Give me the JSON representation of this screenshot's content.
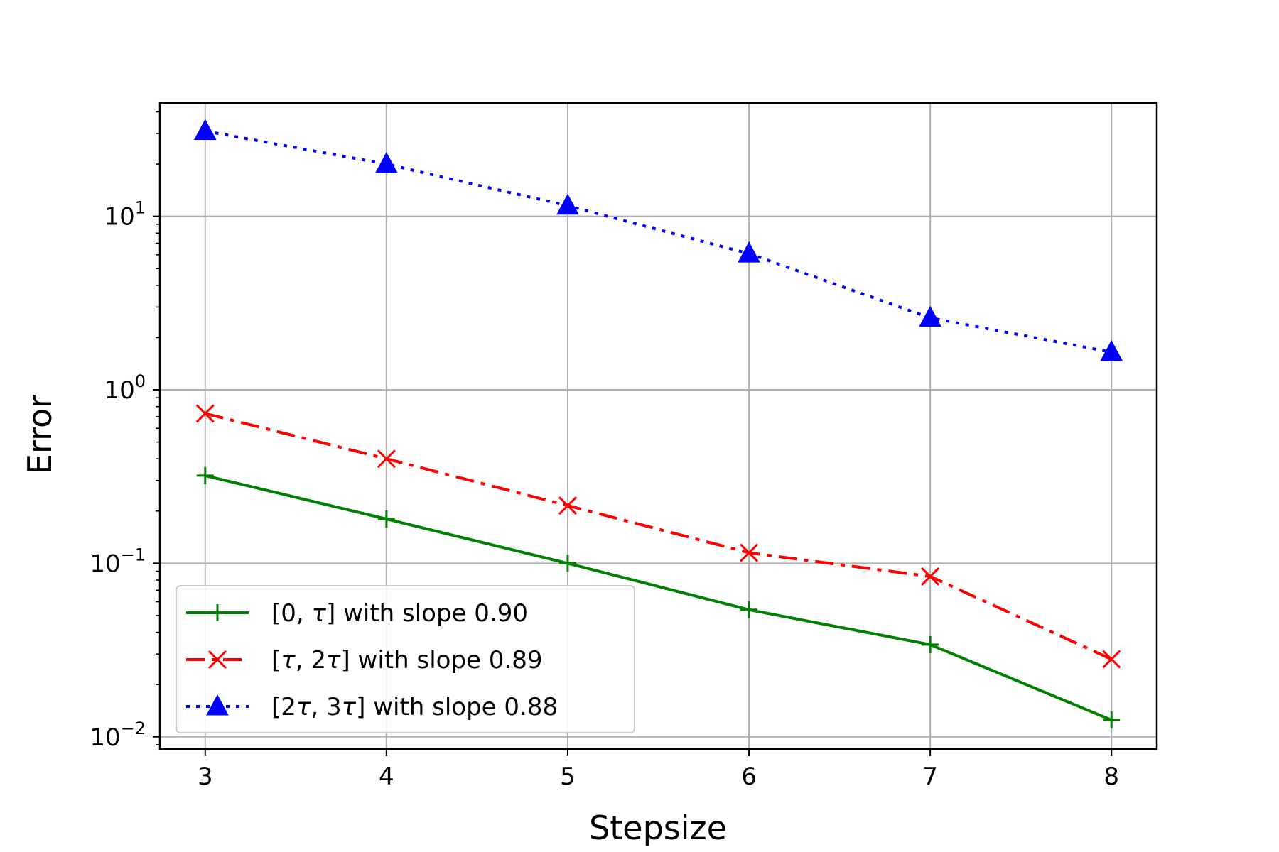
{
  "chart_data": {
    "type": "line",
    "xlabel": "Stepsize",
    "ylabel": "Error",
    "yscale": "log",
    "grid": true,
    "legend_position": "lower-left",
    "x": [
      3,
      4,
      5,
      6,
      7,
      8
    ],
    "xlim": [
      2.75,
      8.25
    ],
    "ylim": [
      0.0085,
      45
    ],
    "x_ticks": [
      "3",
      "4",
      "5",
      "6",
      "7",
      "8"
    ],
    "y_ticks": [
      {
        "value": 0.01,
        "base": "10",
        "exp": "−2"
      },
      {
        "value": 0.1,
        "base": "10",
        "exp": "−1"
      },
      {
        "value": 1,
        "base": "10",
        "exp": "0"
      },
      {
        "value": 10,
        "base": "10",
        "exp": "1"
      }
    ],
    "series": [
      {
        "name": "[0, τ] with slope 0.90",
        "legend_parts": {
          "pre": "[0, ",
          "tau1": "τ",
          "mid": "",
          "tau2": "",
          "post": "] with slope 0.90"
        },
        "values": [
          0.32,
          0.18,
          0.1,
          0.054,
          0.034,
          0.0125
        ],
        "color": "#008000",
        "line_style": "solid",
        "marker": "plus"
      },
      {
        "name": "[τ, 2τ] with slope 0.89",
        "legend_parts": {
          "pre": "[",
          "tau1": "τ",
          "mid": ", 2",
          "tau2": "τ",
          "post": "] with slope 0.89"
        },
        "values": [
          0.73,
          0.4,
          0.215,
          0.115,
          0.084,
          0.028
        ],
        "color": "#ff0000",
        "line_style": "dashdot",
        "marker": "x"
      },
      {
        "name": "[2τ, 3τ] with slope 0.88",
        "legend_parts": {
          "pre": "[2",
          "tau1": "τ",
          "mid": ", 3",
          "tau2": "τ",
          "post": "] with slope 0.88"
        },
        "values": [
          31,
          20,
          11.5,
          6.1,
          2.6,
          1.65
        ],
        "color": "#0000ff",
        "line_style": "dotted",
        "marker": "triangle"
      }
    ]
  }
}
